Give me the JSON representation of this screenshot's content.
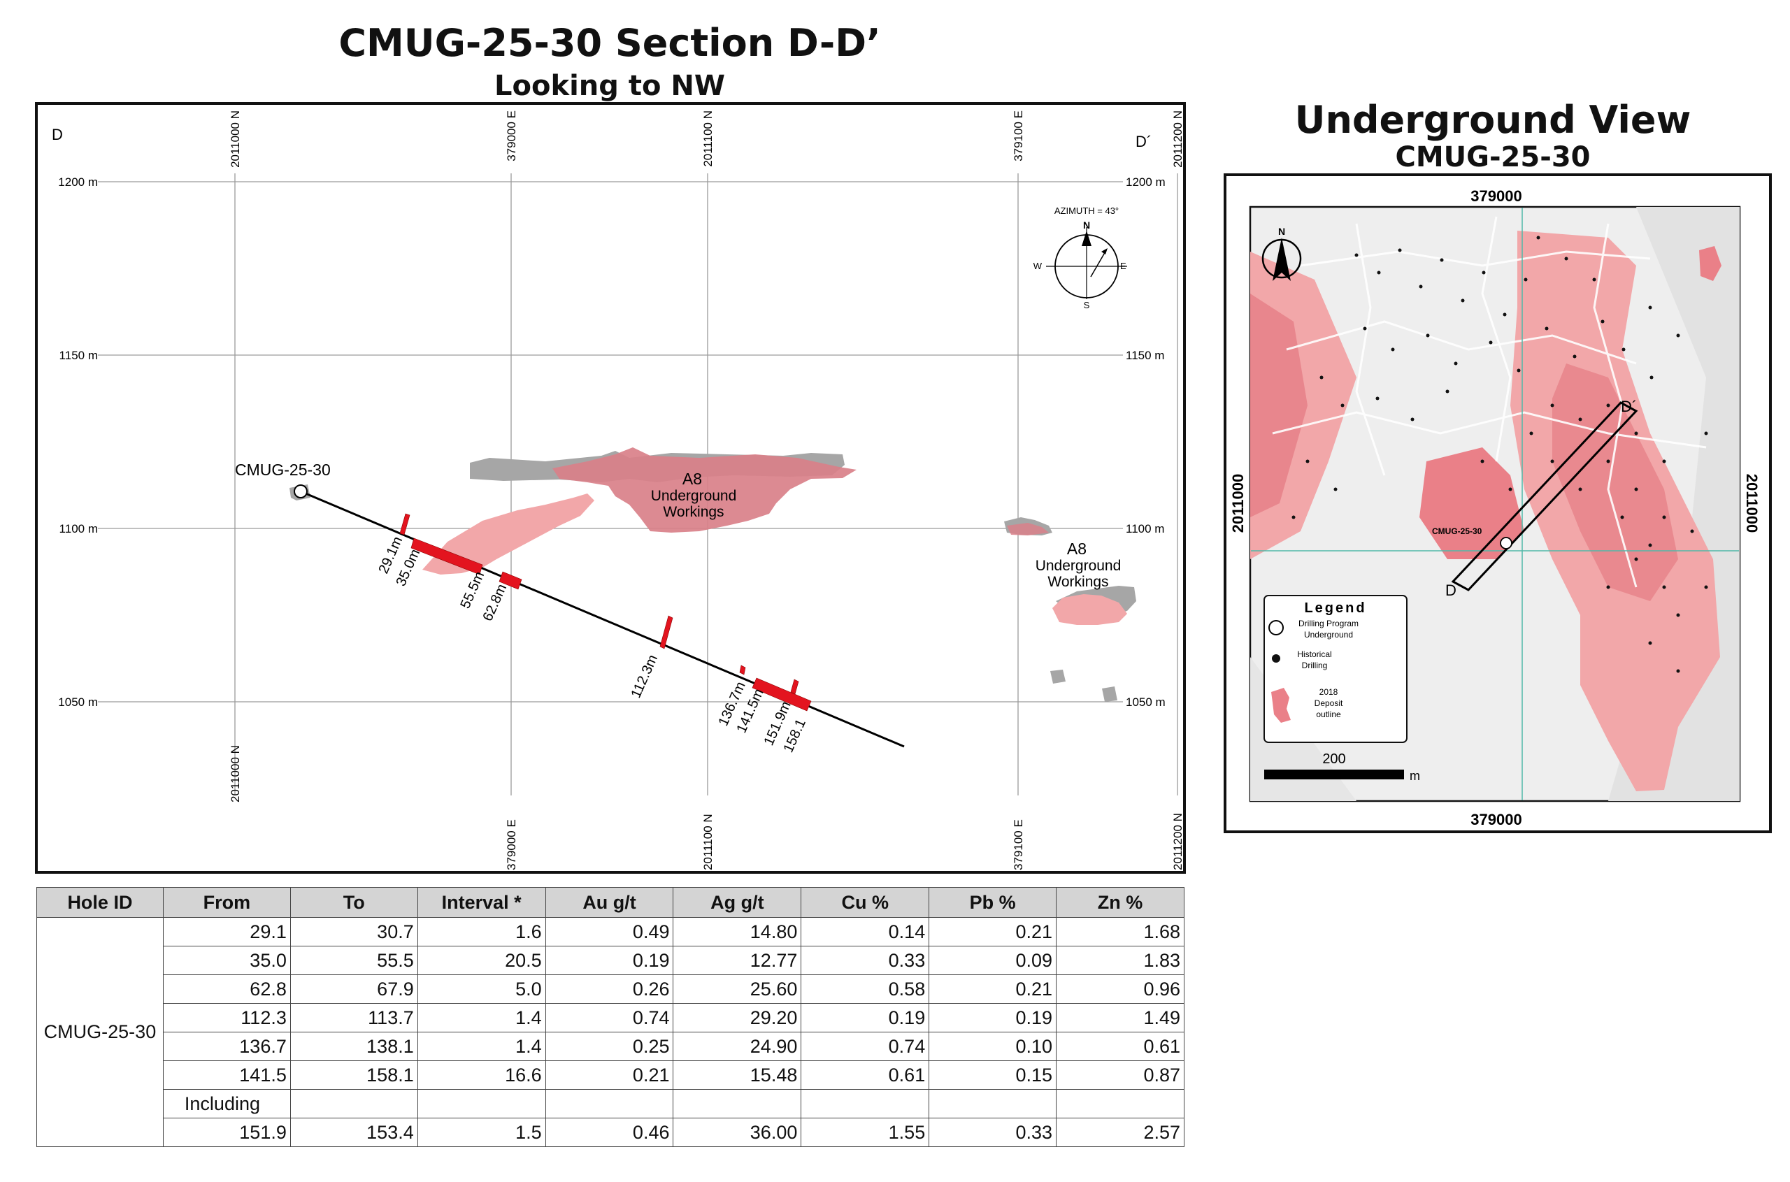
{
  "section": {
    "title": "CMUG-25-30 Section D-D’",
    "subtitle": "Looking to NW",
    "corner_left": "D",
    "corner_right": "D´",
    "elevations": [
      "1200 m",
      "1150 m",
      "1100 m",
      "1050 m"
    ],
    "grid_x_labels": [
      "2011000 N",
      "379000 E",
      "2011100 N",
      "379100 E",
      "2011200 N"
    ],
    "hole_label": "CMUG-25-30",
    "depth_labels": [
      "29.1m",
      "35.0m",
      "55.5m",
      "62.8m",
      "112.3m",
      "136.7m",
      "141.5m",
      "151.9m",
      "158.1"
    ],
    "workings_label_1": [
      "A8",
      "Underground",
      "Workings"
    ],
    "workings_label_2": [
      "A8",
      "Underground",
      "Workings"
    ],
    "compass": {
      "azimuth": "AZIMUTH = 43°",
      "n": "N",
      "s": "S",
      "e": "E",
      "w": "W"
    }
  },
  "plan": {
    "title": "Underground View",
    "subtitle": "CMUG-25-30",
    "easting_label": "379000",
    "northing_label": "2011000",
    "hole_label": "CMUG-25-30",
    "d_label": "D",
    "d_prime_label": "D´",
    "north": "N",
    "scale_value": "200",
    "scale_unit": "m",
    "legend": {
      "title": "Legend",
      "item1": [
        "Drilling Program",
        "Underground"
      ],
      "item2": [
        "Historical",
        "Drilling"
      ],
      "item3": [
        "2018",
        "Deposit",
        "outline"
      ]
    }
  },
  "table": {
    "headers": [
      "Hole ID",
      "From",
      "To",
      "Interval *",
      "Au g/t",
      "Ag g/t",
      "Cu %",
      "Pb %",
      "Zn %"
    ],
    "hole_id": "CMUG-25-30",
    "including_label": "Including",
    "rows": [
      [
        "29.1",
        "30.7",
        "1.6",
        "0.49",
        "14.80",
        "0.14",
        "0.21",
        "1.68"
      ],
      [
        "35.0",
        "55.5",
        "20.5",
        "0.19",
        "12.77",
        "0.33",
        "0.09",
        "1.83"
      ],
      [
        "62.8",
        "67.9",
        "5.0",
        "0.26",
        "25.60",
        "0.58",
        "0.21",
        "0.96"
      ],
      [
        "112.3",
        "113.7",
        "1.4",
        "0.74",
        "29.20",
        "0.19",
        "0.19",
        "1.49"
      ],
      [
        "136.7",
        "138.1",
        "1.4",
        "0.25",
        "24.90",
        "0.74",
        "0.10",
        "0.61"
      ],
      [
        "141.5",
        "158.1",
        "16.6",
        "0.21",
        "15.48",
        "0.61",
        "0.15",
        "0.87"
      ]
    ],
    "sub_row": [
      "151.9",
      "153.4",
      "1.5",
      "0.46",
      "36.00",
      "1.55",
      "0.33",
      "2.57"
    ]
  },
  "colors": {
    "intercept_red": "#e3141f",
    "deposit_pink": "#f2a7a9",
    "workings_rose": "#d98089",
    "workings_grey": "#a6a6a6",
    "section_line": "#50b8a8"
  }
}
